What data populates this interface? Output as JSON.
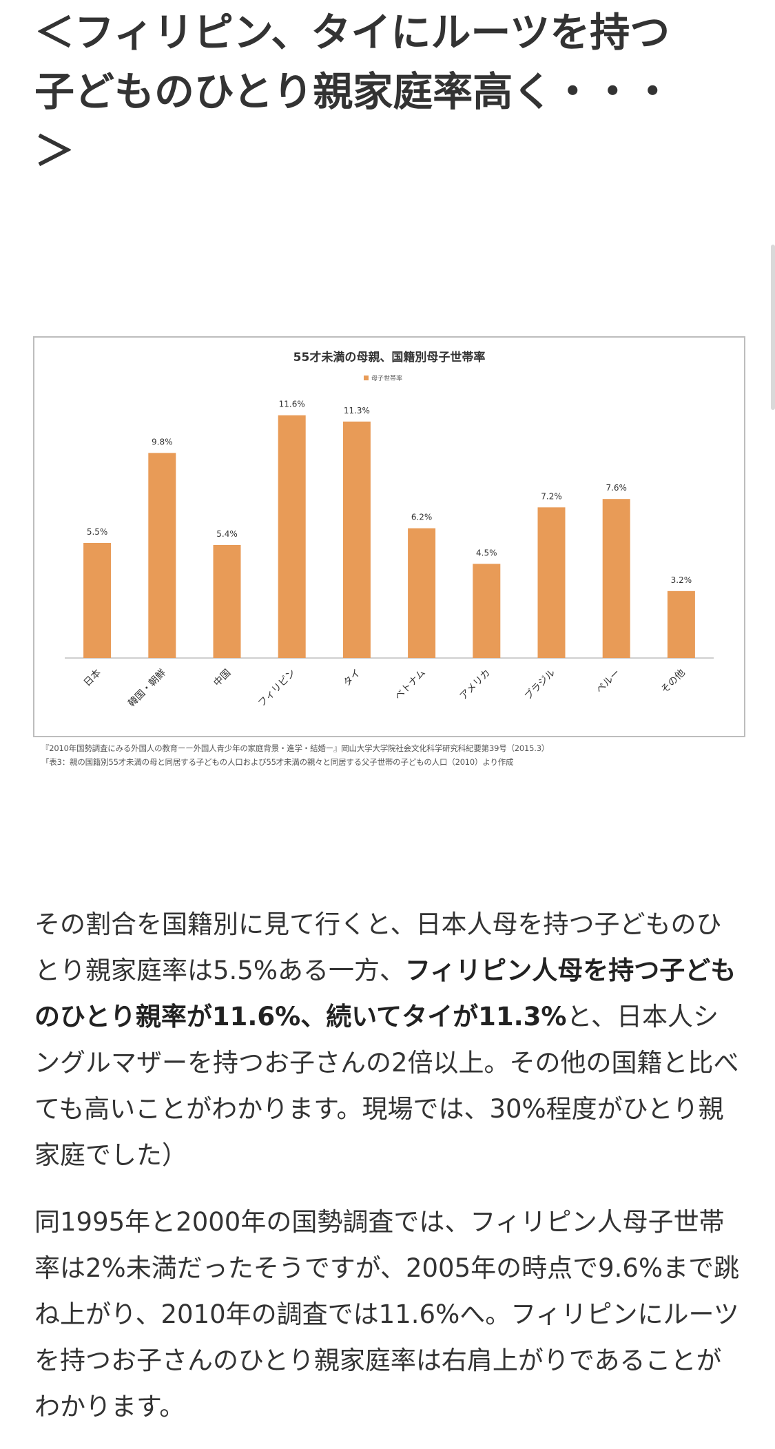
{
  "heading": {
    "line1": "＜フィリピン、タイにルーツを持つ",
    "line2": "子どものひとり親家庭率高く・・・",
    "line3": "＞"
  },
  "chart_data": {
    "type": "bar",
    "title": "55才未満の母親、国籍別母子世帯率",
    "legend": "母子世帯率",
    "legend_position": "top-center",
    "categories": [
      "日本",
      "韓国・朝鮮",
      "中国",
      "フィリピン",
      "タイ",
      "ベトナム",
      "アメリカ",
      "ブラジル",
      "ペルー",
      "その他"
    ],
    "values": [
      5.5,
      9.8,
      5.4,
      11.6,
      11.3,
      6.2,
      4.5,
      7.2,
      7.6,
      3.2
    ],
    "data_labels": [
      "5.5%",
      "9.8%",
      "5.4%",
      "11.6%",
      "11.3%",
      "6.2%",
      "4.5%",
      "7.2%",
      "7.6%",
      "3.2%"
    ],
    "ylim": [
      0,
      13.5
    ],
    "grid": false,
    "bar_color": "#e89b57"
  },
  "captions": {
    "line1": "『2010年国勢調査にみる外国人の教育ーー外国人青少年の家庭背景・進学・結婚ー』岡山大学大学院社会文化科学研究科紀要第39号（2015.3）",
    "line2": "「表3：親の国籍別55才未満の母と同居する子どもの人口および55才未満の親々と同居する父子世帯の子どもの人口（2010）より作成"
  },
  "paragraph1": {
    "part1": "その割合を国籍別に見て行くと、日本人母を持つ子どものひとり親家庭率は5.5%ある一方、",
    "bold": "フィリピン人母を持つ子どものひとり親率が11.6%、続いてタイが11.3%",
    "part2": "と、日本人シングルマザーを持つお子さんの2倍以上。その他の国籍と比べても高いことがわかります。現場では、30%程度がひとり親家庭でした）"
  },
  "paragraph2": {
    "text": "同1995年と2000年の国勢調査では、フィリピン人母子世帯率は2%未満だったそうですが、2005年の時点で9.6%まで跳ね上がり、2010年の調査では11.6%へ。フィリピンにルーツを持つお子さんのひとり親家庭率は右肩上がりであることがわかります。"
  }
}
